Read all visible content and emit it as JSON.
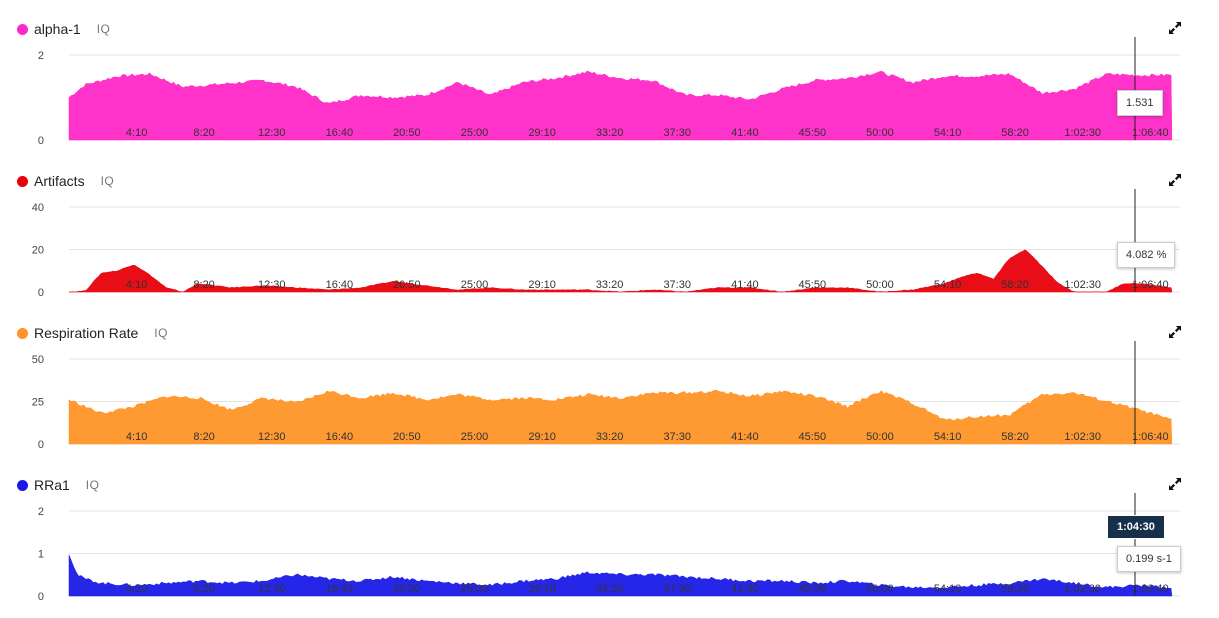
{
  "panels": [
    {
      "id": "alpha1",
      "title": "alpha-1",
      "iq": "IQ",
      "color": "#ff28c6",
      "yticks": [
        "2",
        "0"
      ]
    },
    {
      "id": "artifacts",
      "title": "Artifacts",
      "iq": "IQ",
      "color": "#e8000b",
      "yticks": [
        "40",
        "20",
        "0"
      ]
    },
    {
      "id": "resp",
      "title": "Respiration Rate",
      "iq": "IQ",
      "color": "#ff9326",
      "yticks": [
        "50",
        "25",
        "0"
      ]
    },
    {
      "id": "rra1",
      "title": "RRa1",
      "iq": "IQ",
      "color": "#1a1ae8",
      "yticks": [
        "2",
        "1",
        "0"
      ]
    }
  ],
  "x_ticks": [
    "4:10",
    "8:20",
    "12:30",
    "16:40",
    "20:50",
    "25:00",
    "29:10",
    "33:20",
    "37:30",
    "41:40",
    "45:50",
    "50:00",
    "54:10",
    "58:20",
    "1:02:30",
    "1:06:40"
  ],
  "cursor": {
    "time": "1:04:30"
  },
  "tooltips": {
    "alpha1": "1.531",
    "artifacts": "4.082 %",
    "rra1": "0.199 s-1"
  },
  "chart_data": [
    {
      "type": "area",
      "title": "alpha-1",
      "ylim": [
        0,
        2
      ],
      "x_ticks_minutes": [
        4.17,
        8.33,
        12.5,
        16.67,
        20.83,
        25,
        29.17,
        33.33,
        37.5,
        41.67,
        45.83,
        50,
        54.17,
        58.33,
        62.5,
        66.67
      ],
      "x": [
        0,
        1,
        3,
        5,
        7,
        9,
        12,
        14,
        16,
        18,
        20,
        22,
        24,
        26,
        28,
        30,
        32,
        34,
        36,
        38,
        40,
        42,
        44,
        46,
        48,
        50,
        52,
        54,
        56,
        58,
        60,
        62,
        64,
        66,
        68
      ],
      "values": [
        1.0,
        1.3,
        1.5,
        1.55,
        1.25,
        1.3,
        1.4,
        1.25,
        0.85,
        1.05,
        1.0,
        1.05,
        1.35,
        1.05,
        1.35,
        1.45,
        1.6,
        1.45,
        1.4,
        1.05,
        1.05,
        0.95,
        1.2,
        1.4,
        1.45,
        1.6,
        1.35,
        1.5,
        1.5,
        1.55,
        1.1,
        1.2,
        1.55,
        1.52,
        1.53
      ]
    },
    {
      "type": "area",
      "title": "Artifacts",
      "ylim": [
        0,
        40
      ],
      "x_ticks_minutes": [
        4.17,
        8.33,
        12.5,
        16.67,
        20.83,
        25,
        29.17,
        33.33,
        37.5,
        41.67,
        45.83,
        50,
        54.17,
        58.33,
        62.5,
        66.67
      ],
      "x": [
        0,
        1,
        2,
        3,
        4,
        5,
        6,
        7,
        8,
        9,
        10,
        12,
        14,
        16,
        18,
        20,
        22,
        24,
        26,
        28,
        30,
        32,
        34,
        36,
        38,
        40,
        42,
        44,
        46,
        48,
        50,
        52,
        54,
        55,
        56,
        57,
        58,
        59,
        60,
        61,
        62,
        63,
        64,
        65,
        66,
        67,
        68
      ],
      "values": [
        0,
        0.5,
        9,
        10,
        13,
        8,
        2,
        0,
        4,
        3,
        2,
        3,
        2,
        1,
        2,
        5,
        3,
        1,
        2,
        1,
        1,
        1,
        0,
        1,
        0,
        2,
        2,
        0,
        2,
        2,
        0,
        1,
        4,
        7,
        9,
        6,
        16,
        20,
        12,
        4,
        0,
        0,
        0,
        4,
        4,
        3,
        2
      ]
    },
    {
      "type": "area",
      "title": "Respiration Rate",
      "ylim": [
        0,
        50
      ],
      "x_ticks_minutes": [
        4.17,
        8.33,
        12.5,
        16.67,
        20.83,
        25,
        29.17,
        33.33,
        37.5,
        41.67,
        45.83,
        50,
        54.17,
        58.33,
        62.5,
        66.67
      ],
      "x": [
        0,
        2,
        4,
        6,
        8,
        10,
        12,
        14,
        16,
        18,
        20,
        22,
        24,
        26,
        28,
        30,
        32,
        34,
        36,
        38,
        40,
        42,
        44,
        46,
        48,
        50,
        52,
        54,
        56,
        58,
        60,
        62,
        64,
        66,
        68
      ],
      "values": [
        26,
        18,
        22,
        28,
        27,
        20,
        27,
        24,
        31,
        27,
        30,
        26,
        29,
        26,
        27,
        26,
        29,
        27,
        30,
        30,
        31,
        28,
        31,
        28,
        22,
        31,
        24,
        14,
        16,
        17,
        29,
        30,
        25,
        20,
        14
      ]
    },
    {
      "type": "area",
      "title": "RRa1",
      "ylim": [
        0,
        2
      ],
      "x_ticks_minutes": [
        4.17,
        8.33,
        12.5,
        16.67,
        20.83,
        25,
        29.17,
        33.33,
        37.5,
        41.67,
        45.83,
        50,
        54.17,
        58.33,
        62.5,
        66.67
      ],
      "x": [
        0,
        0.5,
        1,
        2,
        4,
        6,
        8,
        10,
        12,
        14,
        16,
        18,
        20,
        22,
        24,
        26,
        28,
        30,
        32,
        34,
        36,
        38,
        40,
        42,
        44,
        46,
        48,
        50,
        52,
        54,
        56,
        58,
        60,
        62,
        64,
        66,
        68
      ],
      "values": [
        1.0,
        0.5,
        0.4,
        0.3,
        0.25,
        0.3,
        0.35,
        0.3,
        0.35,
        0.5,
        0.4,
        0.35,
        0.45,
        0.35,
        0.3,
        0.25,
        0.35,
        0.4,
        0.55,
        0.5,
        0.5,
        0.45,
        0.4,
        0.35,
        0.35,
        0.3,
        0.35,
        0.25,
        0.2,
        0.2,
        0.25,
        0.3,
        0.4,
        0.3,
        0.2,
        0.25,
        0.2
      ]
    }
  ]
}
